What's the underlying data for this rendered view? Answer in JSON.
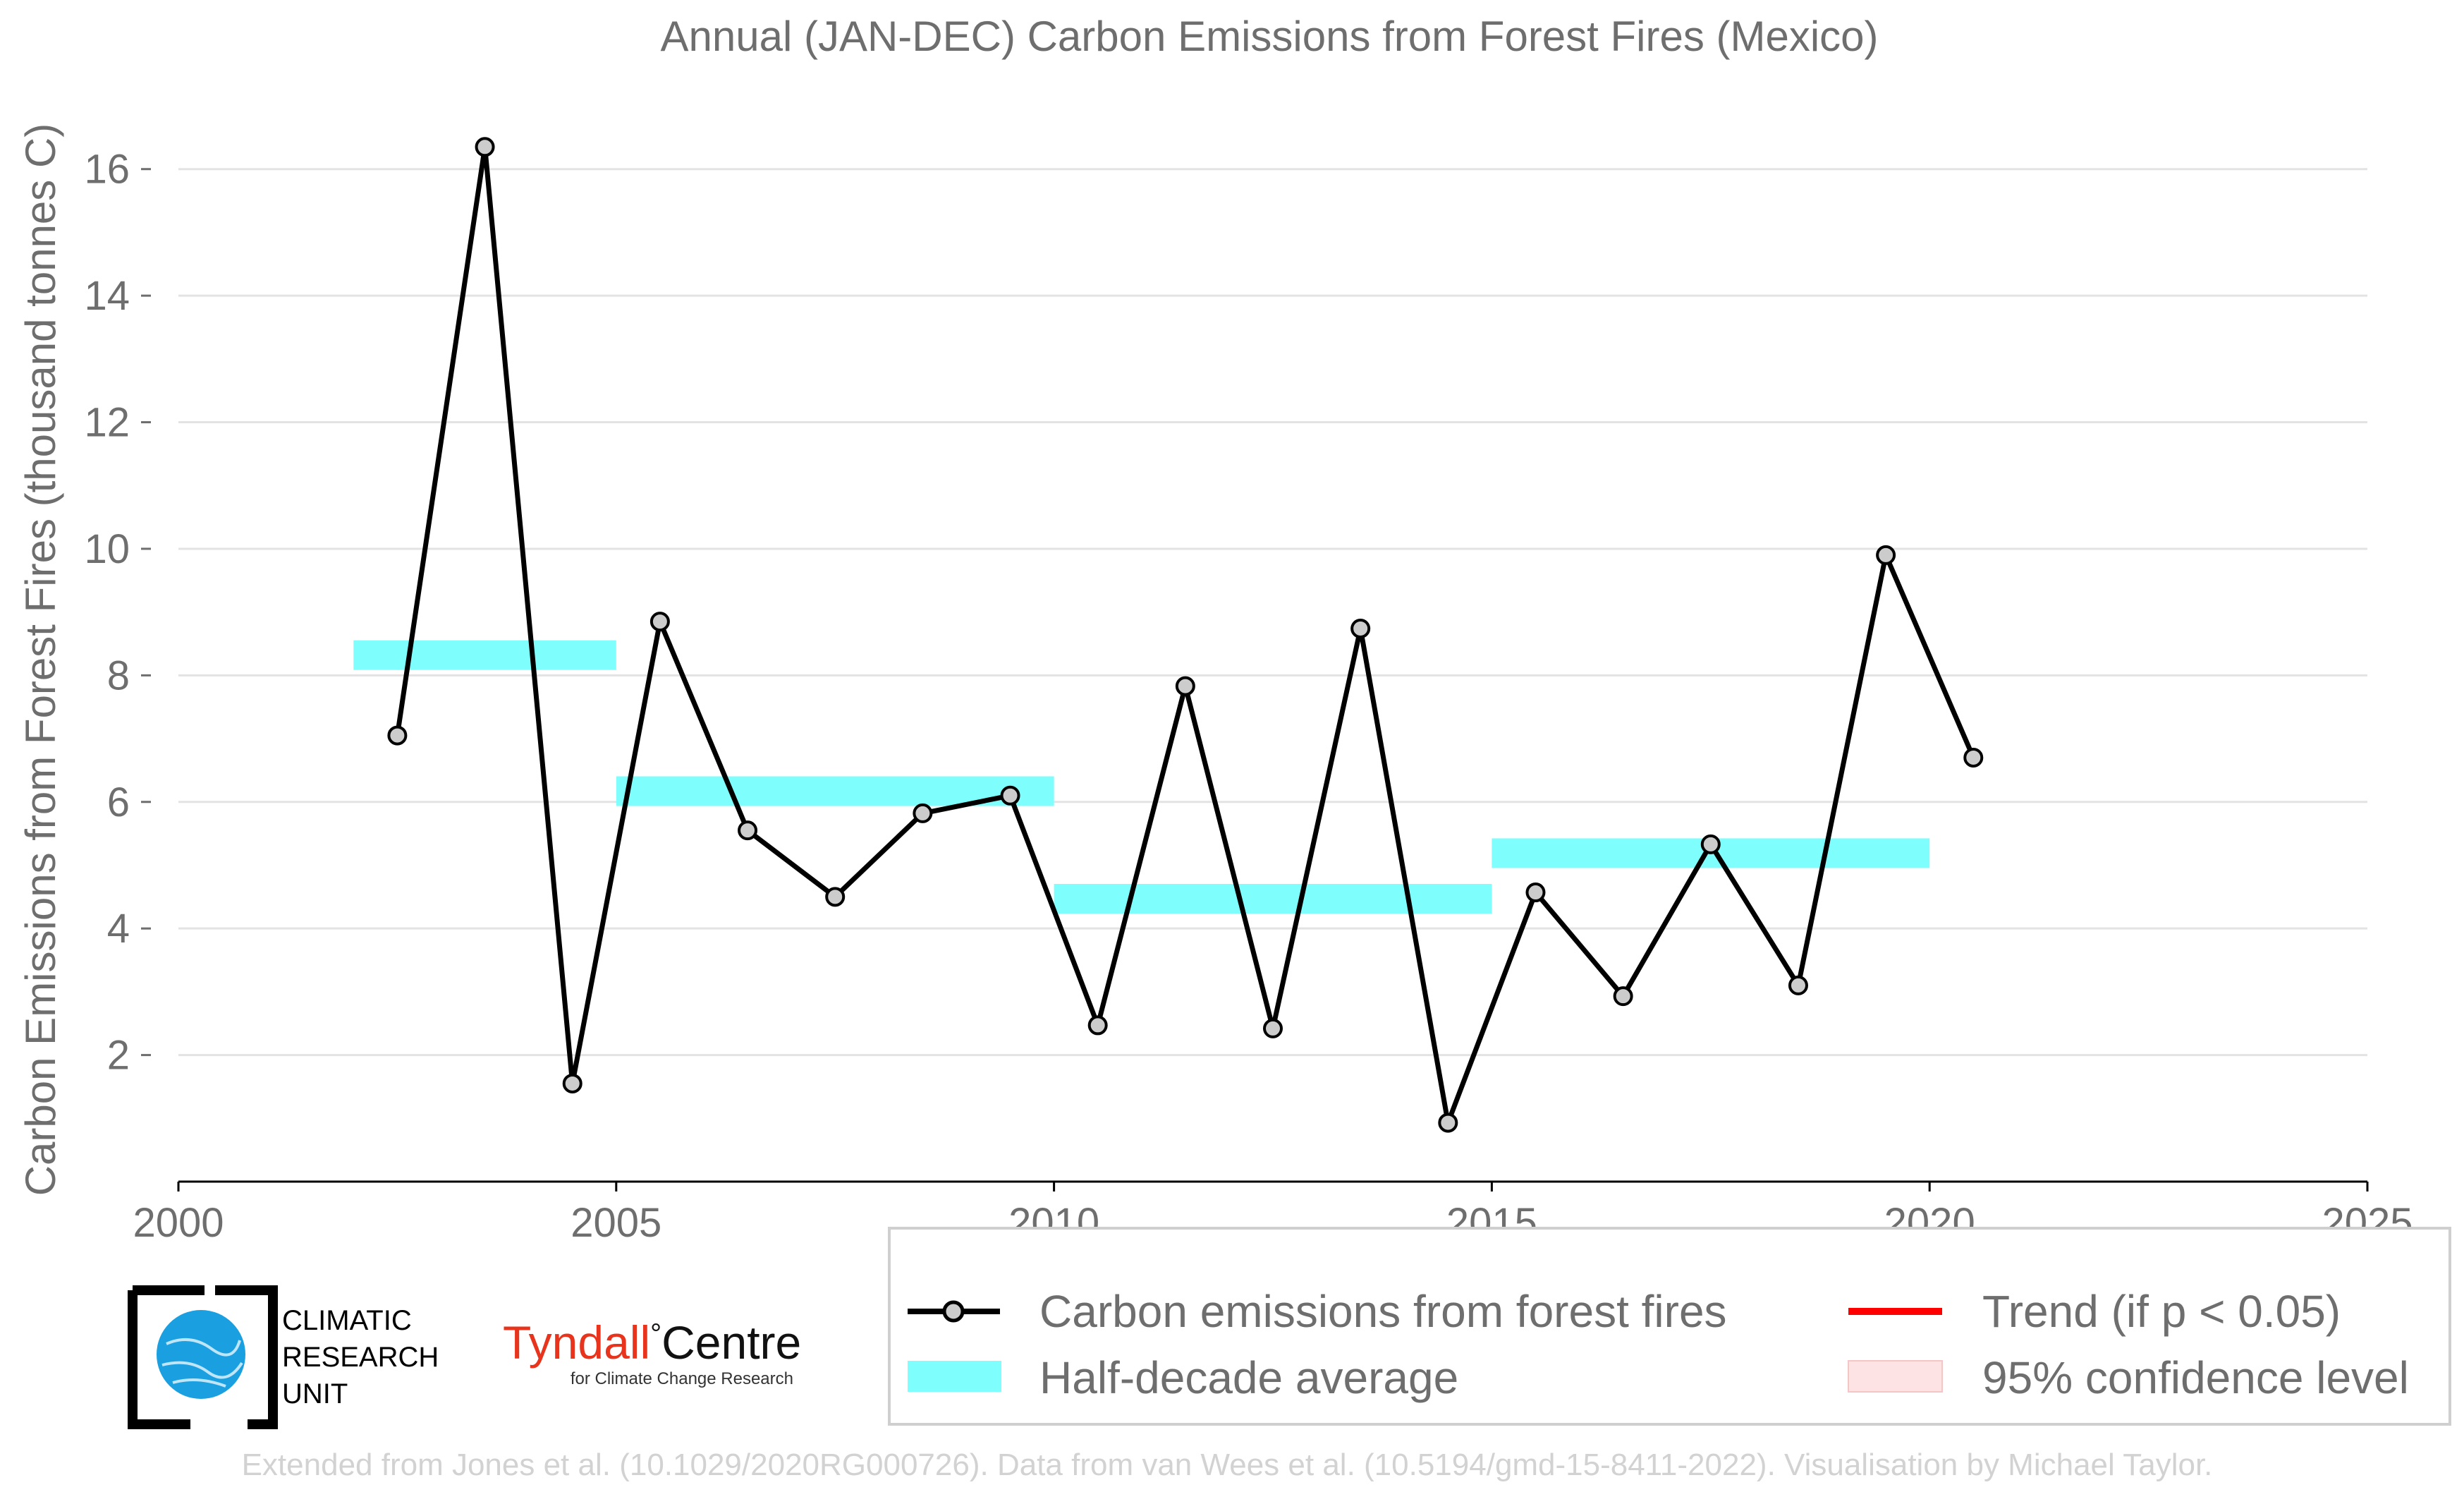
{
  "chart_data": {
    "type": "line",
    "title": "Annual (JAN-DEC) Carbon Emissions from Forest Fires (Mexico)",
    "xlabel": "",
    "ylabel": "Carbon Emissions from Forest Fires (thousand tonnes C)",
    "xlim": [
      2000,
      2025
    ],
    "ylim": [
      0,
      17
    ],
    "x_ticks": [
      2000,
      2005,
      2010,
      2015,
      2020,
      2025
    ],
    "y_ticks": [
      2,
      4,
      6,
      8,
      10,
      12,
      14,
      16
    ],
    "grid": true,
    "series": [
      {
        "name": "Carbon emissions from forest fires",
        "color": "#000000",
        "marker_fill": "#cccccc",
        "x": [
          2002.5,
          2003.5,
          2004.5,
          2005.5,
          2006.5,
          2007.5,
          2008.5,
          2009.5,
          2010.5,
          2011.5,
          2012.5,
          2013.5,
          2014.5,
          2015.5,
          2016.5,
          2017.5,
          2018.5,
          2019.5,
          2020.5
        ],
        "y": [
          7.05,
          16.35,
          1.55,
          8.85,
          5.55,
          4.5,
          5.82,
          6.1,
          2.47,
          7.83,
          2.42,
          8.74,
          0.93,
          4.57,
          2.93,
          5.33,
          3.1,
          9.9,
          6.7
        ]
      },
      {
        "name": "Half-decade average",
        "type": "step",
        "color": "#7ffefe",
        "segments": [
          {
            "x_start": 2002,
            "x_end": 2005,
            "value": 8.32
          },
          {
            "x_start": 2005,
            "x_end": 2010,
            "value": 6.17
          },
          {
            "x_start": 2010,
            "x_end": 2015,
            "value": 4.47
          },
          {
            "x_start": 2015,
            "x_end": 2020,
            "value": 5.19
          }
        ]
      }
    ],
    "legend": {
      "placement": "bottom-right",
      "entries": [
        {
          "label": "Carbon emissions from forest fires",
          "kind": "line-marker",
          "color": "#000000"
        },
        {
          "label": "Trend (if p < 0.05)",
          "kind": "line",
          "color": "#ff0000"
        },
        {
          "label": "Half-decade average",
          "kind": "patch",
          "color": "#7ffefe"
        },
        {
          "label": "95% confidence level",
          "kind": "patch",
          "color": "#fde3e3"
        }
      ]
    }
  },
  "logos": {
    "cru_lines": [
      "CLIMATIC",
      "RESEARCH",
      "UNIT"
    ],
    "tyndall_main": "Tyndall",
    "tyndall_degree": "°",
    "tyndall_centre": "Centre",
    "tyndall_sub": "for Climate Change Research",
    "tyndall_color": "#e8341c"
  },
  "credit": "Extended from Jones et al. (10.1029/2020RG000726). Data from van Wees et al. (10.5194/gmd-15-8411-2022). Visualisation by Michael Taylor."
}
